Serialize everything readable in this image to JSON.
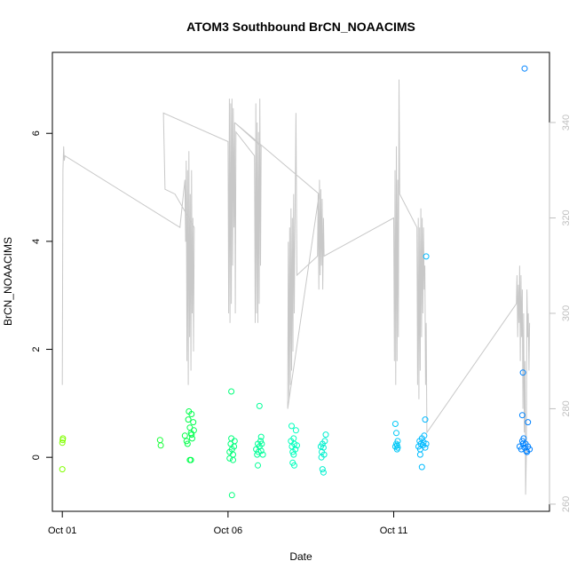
{
  "chart_data": {
    "type": "scatter",
    "title": "ATOM3 Southbound BrCN_NOAACIMS",
    "xlabel": "Date",
    "ylabel": "BrCN_NOAACIMS",
    "x_ticks": [
      {
        "label": "Oct 01",
        "day": 1
      },
      {
        "label": "Oct 06",
        "day": 6
      },
      {
        "label": "Oct 11",
        "day": 11
      }
    ],
    "y_ticks": [
      0,
      2,
      4,
      6
    ],
    "y2_ticks": [
      260,
      280,
      300,
      320,
      340
    ],
    "xlim": [
      0.7,
      15.7
    ],
    "ylim": [
      -1.0,
      7.5
    ],
    "y2lim": [
      258.5,
      354.7
    ],
    "grid": false,
    "legend": "none",
    "colors": {
      "axis": "#000000",
      "secondary_series": "#c8c8c8",
      "secondary_axis": "#c0c0c0",
      "point_colormap": [
        "#80ff00",
        "#00ff40",
        "#00ffc0",
        "#00c0ff",
        "#0080ff"
      ]
    },
    "series": [
      {
        "axis": "left",
        "points": [
          {
            "x": 1.0,
            "y": 0.27
          },
          {
            "x": 1.01,
            "y": 0.32
          },
          {
            "x": 1.02,
            "y": 0.35
          },
          {
            "x": 1.0,
            "y": -0.22
          },
          {
            "x": 3.95,
            "y": 0.32
          },
          {
            "x": 3.97,
            "y": 0.22
          },
          {
            "x": 4.7,
            "y": 0.4
          },
          {
            "x": 4.75,
            "y": 0.3
          },
          {
            "x": 4.8,
            "y": 0.7
          },
          {
            "x": 4.82,
            "y": 0.85
          },
          {
            "x": 4.85,
            "y": 0.55
          },
          {
            "x": 4.88,
            "y": 0.45
          },
          {
            "x": 4.9,
            "y": 0.8
          },
          {
            "x": 4.92,
            "y": 0.35
          },
          {
            "x": 4.95,
            "y": 0.65
          },
          {
            "x": 4.97,
            "y": 0.5
          },
          {
            "x": 4.85,
            "y": -0.05
          },
          {
            "x": 4.88,
            "y": -0.05
          },
          {
            "x": 4.78,
            "y": 0.25
          },
          {
            "x": 4.9,
            "y": 0.42
          },
          {
            "x": 6.05,
            "y": 0.1
          },
          {
            "x": 6.08,
            "y": 0.25
          },
          {
            "x": 6.1,
            "y": 0.35
          },
          {
            "x": 6.12,
            "y": 0.15
          },
          {
            "x": 6.15,
            "y": 0.05
          },
          {
            "x": 6.18,
            "y": 0.2
          },
          {
            "x": 6.2,
            "y": 0.3
          },
          {
            "x": 6.1,
            "y": 1.22
          },
          {
            "x": 6.12,
            "y": -0.7
          },
          {
            "x": 6.05,
            "y": -0.02
          },
          {
            "x": 6.15,
            "y": -0.05
          },
          {
            "x": 6.85,
            "y": 0.15
          },
          {
            "x": 6.88,
            "y": 0.05
          },
          {
            "x": 6.9,
            "y": 0.25
          },
          {
            "x": 6.92,
            "y": 0.1
          },
          {
            "x": 6.95,
            "y": 0.2
          },
          {
            "x": 6.98,
            "y": 0.3
          },
          {
            "x": 7.0,
            "y": 0.12
          },
          {
            "x": 7.02,
            "y": 0.25
          },
          {
            "x": 7.05,
            "y": 0.05
          },
          {
            "x": 6.95,
            "y": 0.95
          },
          {
            "x": 6.9,
            "y": -0.15
          },
          {
            "x": 7.0,
            "y": 0.38
          },
          {
            "x": 7.9,
            "y": 0.3
          },
          {
            "x": 7.93,
            "y": 0.2
          },
          {
            "x": 7.95,
            "y": 0.1
          },
          {
            "x": 7.98,
            "y": 0.35
          },
          {
            "x": 8.0,
            "y": 0.25
          },
          {
            "x": 8.03,
            "y": 0.15
          },
          {
            "x": 8.05,
            "y": 0.5
          },
          {
            "x": 8.08,
            "y": 0.22
          },
          {
            "x": 7.92,
            "y": 0.58
          },
          {
            "x": 7.95,
            "y": -0.1
          },
          {
            "x": 8.0,
            "y": -0.15
          },
          {
            "x": 7.98,
            "y": 0.05
          },
          {
            "x": 8.8,
            "y": 0.2
          },
          {
            "x": 8.83,
            "y": 0.1
          },
          {
            "x": 8.85,
            "y": 0.25
          },
          {
            "x": 8.88,
            "y": 0.18
          },
          {
            "x": 8.9,
            "y": 0.05
          },
          {
            "x": 8.92,
            "y": 0.3
          },
          {
            "x": 8.95,
            "y": 0.42
          },
          {
            "x": 8.85,
            "y": -0.22
          },
          {
            "x": 8.88,
            "y": -0.28
          },
          {
            "x": 8.82,
            "y": 0.0
          },
          {
            "x": 11.05,
            "y": 0.2
          },
          {
            "x": 11.08,
            "y": 0.25
          },
          {
            "x": 11.1,
            "y": 0.15
          },
          {
            "x": 11.12,
            "y": 0.3
          },
          {
            "x": 11.05,
            "y": 0.62
          },
          {
            "x": 11.08,
            "y": 0.45
          },
          {
            "x": 11.1,
            "y": 0.22
          },
          {
            "x": 11.12,
            "y": 0.18
          },
          {
            "x": 11.75,
            "y": 0.2
          },
          {
            "x": 11.78,
            "y": 0.3
          },
          {
            "x": 11.8,
            "y": 0.15
          },
          {
            "x": 11.82,
            "y": 0.25
          },
          {
            "x": 11.85,
            "y": 0.35
          },
          {
            "x": 11.88,
            "y": 0.22
          },
          {
            "x": 11.9,
            "y": 0.28
          },
          {
            "x": 11.92,
            "y": 0.4
          },
          {
            "x": 11.95,
            "y": 0.18
          },
          {
            "x": 11.98,
            "y": 0.25
          },
          {
            "x": 11.95,
            "y": 0.7
          },
          {
            "x": 11.98,
            "y": 3.72
          },
          {
            "x": 11.85,
            "y": -0.18
          },
          {
            "x": 11.8,
            "y": 0.05
          },
          {
            "x": 14.8,
            "y": 0.2
          },
          {
            "x": 14.85,
            "y": 0.15
          },
          {
            "x": 14.9,
            "y": 0.25
          },
          {
            "x": 14.95,
            "y": 0.18
          },
          {
            "x": 15.0,
            "y": 0.12
          },
          {
            "x": 15.05,
            "y": 0.2
          },
          {
            "x": 15.1,
            "y": 0.15
          },
          {
            "x": 14.88,
            "y": 0.3
          },
          {
            "x": 14.92,
            "y": 0.35
          },
          {
            "x": 14.98,
            "y": 0.25
          },
          {
            "x": 15.02,
            "y": 0.1
          },
          {
            "x": 14.88,
            "y": 0.78
          },
          {
            "x": 14.9,
            "y": 1.57
          },
          {
            "x": 15.05,
            "y": 0.65
          },
          {
            "x": 14.95,
            "y": 7.2
          }
        ]
      },
      {
        "axis": "right",
        "type": "line",
        "points": [
          {
            "x": 1.0,
            "y": 285
          },
          {
            "x": 1.02,
            "y": 330
          },
          {
            "x": 1.04,
            "y": 335
          },
          {
            "x": 1.06,
            "y": 332
          },
          {
            "x": 1.08,
            "y": 333
          },
          {
            "x": 4.55,
            "y": 318
          },
          {
            "x": 4.7,
            "y": 328
          },
          {
            "x": 4.72,
            "y": 315
          },
          {
            "x": 4.74,
            "y": 332
          },
          {
            "x": 4.76,
            "y": 290
          },
          {
            "x": 4.78,
            "y": 330
          },
          {
            "x": 4.8,
            "y": 285
          },
          {
            "x": 4.82,
            "y": 334
          },
          {
            "x": 4.84,
            "y": 295
          },
          {
            "x": 4.86,
            "y": 325
          },
          {
            "x": 4.88,
            "y": 288
          },
          {
            "x": 4.9,
            "y": 330
          },
          {
            "x": 4.92,
            "y": 300
          },
          {
            "x": 4.94,
            "y": 320
          },
          {
            "x": 4.96,
            "y": 292
          },
          {
            "x": 4.98,
            "y": 318
          },
          {
            "x": 4.4,
            "y": 325
          },
          {
            "x": 4.1,
            "y": 326
          },
          {
            "x": 4.05,
            "y": 342
          },
          {
            "x": 6.0,
            "y": 336
          },
          {
            "x": 6.02,
            "y": 300
          },
          {
            "x": 6.04,
            "y": 345
          },
          {
            "x": 6.06,
            "y": 298
          },
          {
            "x": 6.08,
            "y": 344
          },
          {
            "x": 6.1,
            "y": 302
          },
          {
            "x": 6.12,
            "y": 345
          },
          {
            "x": 6.14,
            "y": 310
          },
          {
            "x": 6.16,
            "y": 343
          },
          {
            "x": 6.18,
            "y": 318
          },
          {
            "x": 6.2,
            "y": 340
          },
          {
            "x": 6.22,
            "y": 300
          },
          {
            "x": 6.24,
            "y": 338
          },
          {
            "x": 6.8,
            "y": 333
          },
          {
            "x": 6.82,
            "y": 298
          },
          {
            "x": 6.84,
            "y": 344
          },
          {
            "x": 6.86,
            "y": 300
          },
          {
            "x": 6.88,
            "y": 340
          },
          {
            "x": 6.9,
            "y": 298
          },
          {
            "x": 6.92,
            "y": 338
          },
          {
            "x": 6.94,
            "y": 302
          },
          {
            "x": 6.96,
            "y": 345
          },
          {
            "x": 6.98,
            "y": 310
          },
          {
            "x": 7.0,
            "y": 335
          },
          {
            "x": 6.2,
            "y": 340
          },
          {
            "x": 8.75,
            "y": 325
          },
          {
            "x": 7.8,
            "y": 280
          },
          {
            "x": 7.82,
            "y": 315
          },
          {
            "x": 7.84,
            "y": 282
          },
          {
            "x": 7.86,
            "y": 318
          },
          {
            "x": 7.88,
            "y": 285
          },
          {
            "x": 7.9,
            "y": 322
          },
          {
            "x": 7.92,
            "y": 288
          },
          {
            "x": 7.94,
            "y": 320
          },
          {
            "x": 7.96,
            "y": 292
          },
          {
            "x": 7.98,
            "y": 325
          },
          {
            "x": 8.0,
            "y": 300
          },
          {
            "x": 8.02,
            "y": 318
          },
          {
            "x": 8.05,
            "y": 342
          },
          {
            "x": 8.08,
            "y": 308
          },
          {
            "x": 8.7,
            "y": 312
          },
          {
            "x": 8.72,
            "y": 325
          },
          {
            "x": 8.74,
            "y": 305
          },
          {
            "x": 8.76,
            "y": 328
          },
          {
            "x": 8.78,
            "y": 308
          },
          {
            "x": 8.8,
            "y": 326
          },
          {
            "x": 8.82,
            "y": 310
          },
          {
            "x": 8.84,
            "y": 324
          },
          {
            "x": 8.86,
            "y": 305
          },
          {
            "x": 8.88,
            "y": 320
          },
          {
            "x": 8.9,
            "y": 312
          },
          {
            "x": 11.0,
            "y": 320
          },
          {
            "x": 11.02,
            "y": 290
          },
          {
            "x": 11.04,
            "y": 330
          },
          {
            "x": 11.06,
            "y": 285
          },
          {
            "x": 11.08,
            "y": 335
          },
          {
            "x": 11.1,
            "y": 290
          },
          {
            "x": 11.12,
            "y": 328
          },
          {
            "x": 11.14,
            "y": 295
          },
          {
            "x": 11.16,
            "y": 349
          },
          {
            "x": 11.18,
            "y": 325
          },
          {
            "x": 11.7,
            "y": 318
          },
          {
            "x": 11.72,
            "y": 285
          },
          {
            "x": 11.74,
            "y": 320
          },
          {
            "x": 11.76,
            "y": 282
          },
          {
            "x": 11.78,
            "y": 318
          },
          {
            "x": 11.8,
            "y": 288
          },
          {
            "x": 11.82,
            "y": 322
          },
          {
            "x": 11.84,
            "y": 295
          },
          {
            "x": 11.86,
            "y": 320
          },
          {
            "x": 11.88,
            "y": 300
          },
          {
            "x": 11.9,
            "y": 318
          },
          {
            "x": 11.92,
            "y": 305
          },
          {
            "x": 11.94,
            "y": 310
          },
          {
            "x": 11.96,
            "y": 285
          },
          {
            "x": 11.98,
            "y": 298
          },
          {
            "x": 12.0,
            "y": 275
          },
          {
            "x": 14.7,
            "y": 302
          },
          {
            "x": 14.72,
            "y": 308
          },
          {
            "x": 14.74,
            "y": 295
          },
          {
            "x": 14.76,
            "y": 306
          },
          {
            "x": 14.78,
            "y": 298
          },
          {
            "x": 14.8,
            "y": 310
          },
          {
            "x": 14.82,
            "y": 290
          },
          {
            "x": 14.84,
            "y": 308
          },
          {
            "x": 14.86,
            "y": 295
          },
          {
            "x": 14.88,
            "y": 305
          },
          {
            "x": 14.9,
            "y": 280
          },
          {
            "x": 14.92,
            "y": 300
          },
          {
            "x": 14.94,
            "y": 275
          },
          {
            "x": 14.96,
            "y": 290
          },
          {
            "x": 14.98,
            "y": 262
          },
          {
            "x": 15.0,
            "y": 270
          },
          {
            "x": 15.02,
            "y": 305
          },
          {
            "x": 15.04,
            "y": 295
          },
          {
            "x": 15.06,
            "y": 300
          },
          {
            "x": 15.08,
            "y": 288
          },
          {
            "x": 15.1,
            "y": 298
          }
        ]
      }
    ]
  }
}
